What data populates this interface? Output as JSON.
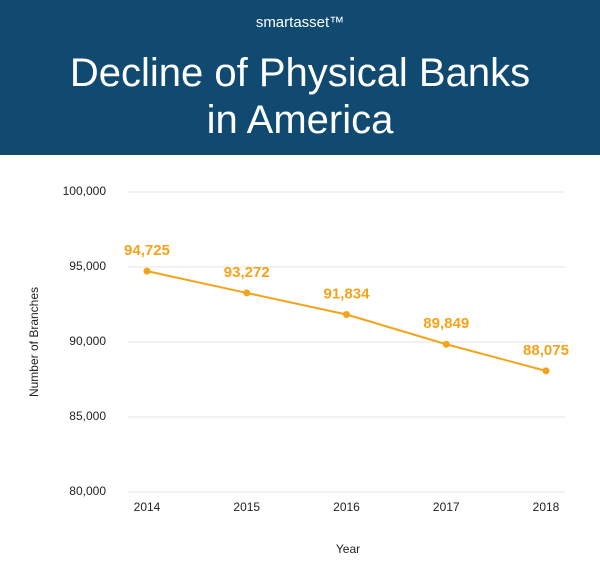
{
  "brand": "smartasset™",
  "chart_data": {
    "type": "line",
    "title": "Decline of Physical Banks in America",
    "categories": [
      "2014",
      "2015",
      "2016",
      "2017",
      "2018"
    ],
    "series": [
      {
        "name": "Number of Branches",
        "color": "#f5a31a",
        "values": [
          94725,
          93272,
          91834,
          89849,
          88075
        ],
        "value_labels": [
          "94,725",
          "93,272",
          "91,834",
          "89,849",
          "88,075"
        ]
      }
    ],
    "ylim": [
      80000,
      100000
    ],
    "yticks": [
      {
        "value": 80000,
        "label": "80,000"
      },
      {
        "value": 85000,
        "label": "85,000"
      },
      {
        "value": 90000,
        "label": "90,000"
      },
      {
        "value": 95000,
        "label": "95,000"
      },
      {
        "value": 100000,
        "label": "100,000"
      }
    ],
    "xlabel": "Year",
    "ylabel": "Number of Branches",
    "grid": true
  }
}
